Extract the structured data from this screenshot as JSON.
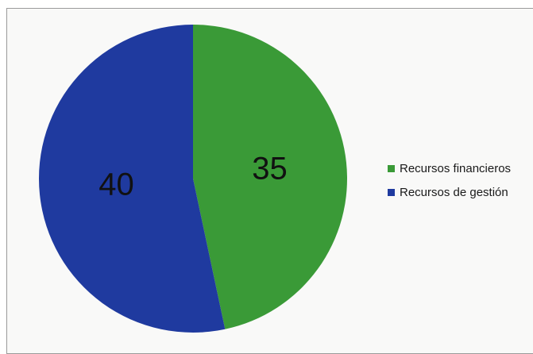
{
  "chart_data": {
    "type": "pie",
    "title": "",
    "categories": [
      "Recursos financieros",
      "Recursos de gestión"
    ],
    "values": [
      35,
      40
    ],
    "data_labels": [
      "35",
      "40"
    ],
    "colors": [
      "#3a9a37",
      "#1f3a9f"
    ],
    "legend_position": "right"
  },
  "legend": {
    "items": [
      {
        "label": "Recursos financieros",
        "color": "#3a9a37"
      },
      {
        "label": "Recursos de gestión",
        "color": "#1f3a9f"
      }
    ]
  }
}
